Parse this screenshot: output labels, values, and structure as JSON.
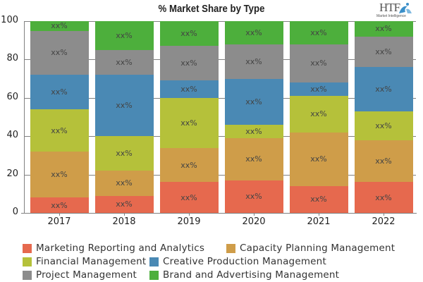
{
  "title": "% Market Share by Type",
  "logo": {
    "main": "HTF",
    "sub": "Market Intelligence"
  },
  "chart_data": {
    "type": "bar",
    "stacked": true,
    "title": "% Market Share by Type",
    "xlabel": "",
    "ylabel": "",
    "ylim": [
      0,
      100
    ],
    "yticks": [
      0,
      20,
      40,
      60,
      80,
      100
    ],
    "grid": "horizontal",
    "legend_position": "bottom",
    "data_label": "xx%",
    "categories": [
      "2017",
      "2018",
      "2019",
      "2020",
      "2021",
      "2022"
    ],
    "series": [
      {
        "name": "Marketing Reporting and Analytics",
        "color": "#E6694E",
        "values": [
          8,
          9,
          16,
          17,
          14,
          16
        ]
      },
      {
        "name": "Capacity Planning Management",
        "color": "#CF9D49",
        "values": [
          24,
          13,
          18,
          22,
          28,
          22
        ]
      },
      {
        "name": "Financial Management",
        "color": "#B5C13A",
        "values": [
          22,
          18,
          26,
          7,
          19,
          15
        ]
      },
      {
        "name": "Creative Production Management",
        "color": "#4A89B4",
        "values": [
          18,
          32,
          9,
          24,
          7,
          23
        ]
      },
      {
        "name": "Project Management",
        "color": "#8C8C8C",
        "values": [
          23,
          13,
          18,
          18,
          20,
          16
        ]
      },
      {
        "name": "Brand and Advertising Management",
        "color": "#4DAF3C",
        "values": [
          5,
          15,
          13,
          12,
          12,
          8
        ]
      }
    ]
  },
  "legend": [
    {
      "label": "Marketing Reporting and Analytics",
      "color": "#E6694E"
    },
    {
      "label": "Capacity Planning Management",
      "color": "#CF9D49"
    },
    {
      "label": "Financial Management",
      "color": "#B5C13A"
    },
    {
      "label": "Creative Production Management",
      "color": "#4A89B4"
    },
    {
      "label": "Project Management",
      "color": "#8C8C8C"
    },
    {
      "label": "Brand and Advertising Management",
      "color": "#4DAF3C"
    }
  ]
}
